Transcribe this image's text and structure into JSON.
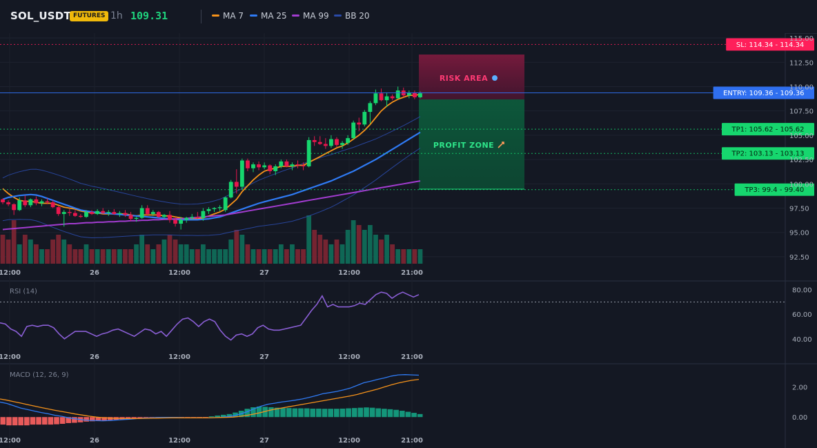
{
  "header": {
    "symbol": "SOL_USDT",
    "badge": "FUTURES",
    "timeframe": "1h",
    "last_price": "109.31",
    "indicators": [
      {
        "label": "MA 7",
        "color": "#f7931a"
      },
      {
        "label": "MA 25",
        "color": "#2f7bf5"
      },
      {
        "label": "MA 99",
        "color": "#a33cd1"
      },
      {
        "label": "BB 20",
        "color": "#2a4aa8"
      }
    ]
  },
  "levels": {
    "sl": {
      "label": "SL: 114.34",
      "value": 114.34,
      "axis_label": "114.34",
      "color": "#ff1f5a"
    },
    "entry": {
      "label": "ENTRY: 109.36",
      "value": 109.36,
      "axis_label": "109.36",
      "color": "#2f6ff0"
    },
    "tp1": {
      "label": "TP1: 105.62",
      "value": 105.62,
      "axis_label": "105.62",
      "color": "#16d66e"
    },
    "tp2": {
      "label": "TP2: 103.13",
      "value": 103.13,
      "axis_label": "103.13",
      "color": "#16d66e"
    },
    "tp3": {
      "label": "TP3: 99.4",
      "value": 99.4,
      "axis_label": "99.40",
      "color": "#16d66e"
    }
  },
  "zones": {
    "risk_label": "RISK AREA",
    "profit_label": "PROFIT ZONE"
  },
  "panes": {
    "rsi_label": "RSI (14)",
    "macd_label": "MACD (12, 26, 9)"
  },
  "chart_data": {
    "type": "candlestick",
    "x_ticks": [
      "12:00",
      "26",
      "12:00",
      "27",
      "12:00",
      "21:00"
    ],
    "price_ticks": [
      "115.00",
      "112.50",
      "110.00",
      "107.50",
      "105.00",
      "102.50",
      "100.00",
      "97.50",
      "95.00",
      "92.50"
    ],
    "ylim": [
      91.5,
      115.5
    ],
    "candles": [
      [
        98.4,
        98.5,
        97.9,
        98.1
      ],
      [
        98.1,
        98.3,
        97.7,
        97.9
      ],
      [
        97.9,
        98.0,
        96.8,
        97.3
      ],
      [
        97.3,
        98.6,
        97.2,
        98.3
      ],
      [
        98.3,
        98.8,
        97.6,
        97.8
      ],
      [
        97.8,
        98.5,
        97.6,
        98.4
      ],
      [
        98.4,
        98.7,
        97.8,
        98.0
      ],
      [
        98.0,
        98.4,
        97.7,
        98.2
      ],
      [
        98.2,
        98.5,
        97.9,
        98.1
      ],
      [
        98.1,
        98.3,
        97.5,
        97.6
      ],
      [
        97.6,
        97.7,
        96.7,
        96.9
      ],
      [
        96.9,
        97.3,
        95.6,
        97.1
      ],
      [
        97.1,
        97.4,
        96.7,
        97.0
      ],
      [
        97.0,
        97.3,
        96.6,
        96.7
      ],
      [
        96.7,
        96.9,
        96.5,
        96.6
      ],
      [
        96.6,
        97.3,
        96.5,
        97.1
      ],
      [
        97.1,
        97.3,
        96.8,
        96.9
      ],
      [
        96.9,
        97.4,
        96.8,
        97.2
      ],
      [
        97.2,
        97.5,
        96.9,
        97.0
      ],
      [
        97.0,
        97.3,
        96.7,
        97.1
      ],
      [
        97.1,
        97.4,
        96.8,
        96.9
      ],
      [
        96.9,
        97.2,
        96.6,
        97.0
      ],
      [
        97.0,
        97.3,
        96.6,
        96.8
      ],
      [
        96.8,
        97.1,
        96.2,
        96.4
      ],
      [
        96.4,
        96.6,
        96.1,
        96.5
      ],
      [
        96.5,
        97.8,
        96.4,
        97.5
      ],
      [
        97.5,
        97.8,
        96.7,
        96.9
      ],
      [
        96.9,
        97.3,
        96.7,
        97.1
      ],
      [
        97.1,
        97.2,
        96.5,
        96.6
      ],
      [
        96.6,
        96.9,
        96.4,
        96.8
      ],
      [
        96.8,
        97.2,
        96.0,
        96.3
      ],
      [
        96.3,
        96.6,
        95.6,
        95.9
      ],
      [
        95.9,
        96.6,
        95.3,
        96.3
      ],
      [
        96.3,
        96.6,
        96.0,
        96.5
      ],
      [
        96.5,
        96.9,
        96.3,
        96.6
      ],
      [
        96.6,
        97.1,
        96.4,
        96.5
      ],
      [
        96.5,
        97.5,
        96.2,
        97.2
      ],
      [
        97.2,
        97.6,
        96.9,
        97.4
      ],
      [
        97.4,
        97.6,
        97.1,
        97.5
      ],
      [
        97.5,
        97.8,
        97.2,
        97.6
      ],
      [
        97.3,
        98.7,
        97.1,
        98.6
      ],
      [
        98.6,
        100.4,
        98.5,
        100.2
      ],
      [
        100.2,
        101.5,
        99.0,
        99.7
      ],
      [
        99.7,
        102.6,
        99.4,
        102.4
      ],
      [
        102.4,
        102.6,
        101.3,
        101.6
      ],
      [
        101.6,
        102.2,
        101.2,
        102.0
      ],
      [
        102.0,
        102.3,
        101.4,
        101.7
      ],
      [
        101.7,
        102.2,
        101.5,
        101.9
      ],
      [
        101.9,
        102.0,
        101.0,
        101.3
      ],
      [
        101.3,
        102.0,
        100.9,
        101.8
      ],
      [
        101.8,
        102.5,
        101.6,
        102.3
      ],
      [
        102.3,
        102.5,
        101.7,
        101.8
      ],
      [
        101.8,
        102.2,
        101.4,
        102.0
      ],
      [
        102.0,
        102.4,
        101.6,
        101.9
      ],
      [
        101.9,
        102.2,
        101.4,
        101.8
      ],
      [
        101.8,
        104.8,
        101.7,
        104.5
      ],
      [
        104.5,
        104.9,
        103.9,
        104.3
      ],
      [
        104.3,
        104.9,
        104.0,
        104.1
      ],
      [
        104.1,
        104.7,
        103.6,
        103.9
      ],
      [
        103.9,
        105.0,
        103.7,
        104.6
      ],
      [
        104.6,
        104.8,
        103.8,
        104.0
      ],
      [
        104.0,
        104.4,
        103.6,
        104.2
      ],
      [
        104.2,
        105.0,
        104.0,
        104.7
      ],
      [
        104.7,
        106.5,
        104.6,
        106.3
      ],
      [
        106.3,
        106.8,
        105.4,
        106.1
      ],
      [
        106.1,
        107.6,
        105.9,
        107.4
      ],
      [
        107.4,
        108.5,
        106.2,
        108.3
      ],
      [
        108.3,
        109.7,
        108.1,
        109.3
      ],
      [
        109.3,
        109.8,
        108.5,
        108.6
      ],
      [
        108.6,
        109.4,
        107.9,
        109.0
      ],
      [
        109.0,
        109.2,
        108.6,
        108.8
      ],
      [
        108.8,
        110.0,
        108.7,
        109.6
      ],
      [
        109.6,
        109.9,
        108.9,
        109.1
      ],
      [
        109.1,
        109.6,
        108.8,
        109.4
      ],
      [
        109.4,
        109.6,
        108.7,
        108.9
      ],
      [
        108.9,
        109.5,
        108.8,
        109.31
      ]
    ],
    "series": [
      {
        "name": "MA 7",
        "values": [
          99.5,
          99.0,
          98.6,
          98.3,
          98.2,
          98.2,
          98.1,
          98.0,
          98.0,
          98.0,
          97.8,
          97.6,
          97.5,
          97.4,
          97.2,
          97.1,
          97.0,
          97.0,
          96.9,
          96.9,
          96.9,
          96.9,
          96.9,
          96.8,
          96.7,
          96.8,
          96.8,
          96.8,
          96.8,
          96.7,
          96.7,
          96.6,
          96.5,
          96.4,
          96.4,
          96.4,
          96.5,
          96.7,
          96.9,
          97.1,
          97.4,
          97.9,
          98.4,
          99.2,
          99.8,
          100.4,
          100.9,
          101.3,
          101.5,
          101.6,
          101.8,
          101.8,
          101.8,
          101.9,
          101.9,
          102.2,
          102.5,
          102.8,
          103.1,
          103.4,
          103.7,
          103.9,
          104.2,
          104.6,
          105.0,
          105.5,
          106.1,
          106.8,
          107.5,
          108.0,
          108.4,
          108.7,
          108.9,
          109.1,
          109.1,
          109.2
        ]
      },
      {
        "name": "MA 25",
        "values": [
          98.4,
          98.6,
          98.7,
          98.8,
          98.85,
          98.9,
          98.85,
          98.7,
          98.5,
          98.3,
          98.1,
          97.9,
          97.7,
          97.5,
          97.3,
          97.2,
          97.1,
          97.05,
          97.0,
          96.95,
          96.9,
          96.85,
          96.8,
          96.75,
          96.7,
          96.65,
          96.6,
          96.55,
          96.5,
          96.45,
          96.4,
          96.35,
          96.3,
          96.3,
          96.3,
          96.3,
          96.35,
          96.4,
          96.5,
          96.6,
          96.8,
          97.0,
          97.2,
          97.4,
          97.6,
          97.8,
          98.0,
          98.15,
          98.3,
          98.45,
          98.6,
          98.75,
          98.9,
          99.1,
          99.3,
          99.5,
          99.7,
          99.9,
          100.1,
          100.3,
          100.55,
          100.8,
          101.05,
          101.3,
          101.6,
          101.9,
          102.2,
          102.5,
          102.85,
          103.2,
          103.55,
          103.9,
          104.25,
          104.6,
          104.95,
          105.3
        ]
      },
      {
        "name": "MA 99",
        "values": [
          95.3,
          95.35,
          95.4,
          95.45,
          95.5,
          95.55,
          95.6,
          95.65,
          95.7,
          95.75,
          95.8,
          95.85,
          95.9,
          95.9,
          95.95,
          96.0,
          96.0,
          96.05,
          96.05,
          96.1,
          96.1,
          96.15,
          96.15,
          96.2,
          96.2,
          96.25,
          96.25,
          96.3,
          96.3,
          96.35,
          96.35,
          96.4,
          96.4,
          96.45,
          96.5,
          96.55,
          96.6,
          96.65,
          96.7,
          96.75,
          96.8,
          96.9,
          97.0,
          97.1,
          97.2,
          97.3,
          97.4,
          97.5,
          97.6,
          97.7,
          97.8,
          97.9,
          98.0,
          98.1,
          98.2,
          98.3,
          98.4,
          98.5,
          98.6,
          98.7,
          98.8,
          98.9,
          99.0,
          99.1,
          99.2,
          99.3,
          99.4,
          99.5,
          99.6,
          99.7,
          99.8,
          99.9,
          100.0,
          100.1,
          100.2,
          100.3
        ]
      }
    ],
    "volume": [
      6,
      5,
      9,
      4,
      6,
      5,
      4,
      3,
      3,
      5,
      6,
      5,
      4,
      3,
      3,
      4,
      3,
      3,
      3,
      3,
      3,
      3,
      3,
      3,
      4,
      6,
      4,
      3,
      4,
      5,
      6,
      5,
      4,
      4,
      3,
      3,
      4,
      3,
      3,
      3,
      3,
      5,
      7,
      6,
      4,
      3,
      3,
      3,
      3,
      3,
      4,
      3,
      4,
      3,
      3,
      10,
      7,
      6,
      5,
      4,
      5,
      4,
      7,
      9,
      8,
      7,
      8,
      6,
      5,
      6,
      4,
      3,
      3,
      3,
      3,
      3
    ],
    "rsi": {
      "label": "RSI (14)",
      "ticks": [
        "80.00",
        "60.00",
        "40.00"
      ],
      "ylim": [
        32,
        86
      ],
      "overbought": 70,
      "values": [
        53,
        52,
        48,
        46,
        42,
        50,
        51,
        50,
        51,
        51,
        49,
        44,
        40,
        43,
        46,
        46,
        46,
        44,
        42,
        44,
        45,
        47,
        48,
        46,
        44,
        42,
        45,
        48,
        47,
        44,
        46,
        42,
        47,
        52,
        56,
        57,
        54,
        50,
        54,
        56,
        54,
        47,
        42,
        39,
        43,
        44,
        42,
        44,
        49,
        51,
        48,
        47,
        47,
        48,
        49,
        50,
        51,
        57,
        63,
        68,
        75,
        66,
        68,
        66,
        66,
        66,
        67,
        69,
        68,
        72,
        76,
        78,
        77,
        73,
        76,
        78,
        76,
        74,
        76
      ]
    },
    "macd": {
      "label": "MACD (12, 26, 9)",
      "ticks": [
        "2.00",
        "0.00"
      ],
      "ylim": [
        -1.0,
        3.4
      ],
      "macd_line": [
        1.0,
        0.9,
        0.75,
        0.6,
        0.5,
        0.4,
        0.3,
        0.22,
        0.12,
        0.05,
        -0.05,
        -0.12,
        -0.18,
        -0.22,
        -0.24,
        -0.25,
        -0.23,
        -0.2,
        -0.17,
        -0.14,
        -0.1,
        -0.07,
        -0.05,
        -0.03,
        -0.02,
        -0.02,
        -0.03,
        -0.04,
        -0.04,
        -0.05,
        -0.05,
        -0.04,
        -0.02,
        0.02,
        0.08,
        0.2,
        0.35,
        0.55,
        0.72,
        0.85,
        0.92,
        1.0,
        1.06,
        1.12,
        1.2,
        1.3,
        1.42,
        1.55,
        1.62,
        1.7,
        1.8,
        1.92,
        2.1,
        2.28,
        2.38,
        2.5,
        2.6,
        2.72,
        2.8,
        2.82,
        2.8,
        2.78
      ],
      "signal_line": [
        1.2,
        1.12,
        1.02,
        0.93,
        0.83,
        0.73,
        0.63,
        0.54,
        0.45,
        0.37,
        0.29,
        0.2,
        0.13,
        0.06,
        0.0,
        -0.04,
        -0.07,
        -0.09,
        -0.1,
        -0.1,
        -0.1,
        -0.09,
        -0.08,
        -0.07,
        -0.06,
        -0.05,
        -0.05,
        -0.05,
        -0.05,
        -0.05,
        -0.05,
        -0.04,
        -0.03,
        -0.02,
        0.0,
        0.05,
        0.12,
        0.2,
        0.3,
        0.42,
        0.52,
        0.6,
        0.68,
        0.76,
        0.84,
        0.92,
        1.0,
        1.08,
        1.16,
        1.24,
        1.32,
        1.4,
        1.5,
        1.62,
        1.74,
        1.86,
        2.0,
        2.14,
        2.26,
        2.36,
        2.44,
        2.5
      ],
      "histogram": [
        -0.5,
        -0.55,
        -0.55,
        -0.55,
        -0.55,
        -0.5,
        -0.5,
        -0.5,
        -0.5,
        -0.48,
        -0.45,
        -0.4,
        -0.38,
        -0.35,
        -0.3,
        -0.28,
        -0.25,
        -0.22,
        -0.2,
        -0.18,
        -0.15,
        -0.12,
        -0.1,
        -0.1,
        -0.08,
        -0.08,
        -0.08,
        -0.08,
        -0.06,
        -0.05,
        -0.05,
        -0.05,
        -0.05,
        -0.04,
        -0.02,
        0.05,
        0.1,
        0.15,
        0.2,
        0.3,
        0.42,
        0.55,
        0.65,
        0.7,
        0.68,
        0.65,
        0.62,
        0.6,
        0.6,
        0.58,
        0.58,
        0.58,
        0.56,
        0.56,
        0.55,
        0.55,
        0.55,
        0.56,
        0.58,
        0.6,
        0.62,
        0.64,
        0.62,
        0.58,
        0.55,
        0.52,
        0.48,
        0.42,
        0.35,
        0.28,
        0.2
      ]
    }
  }
}
